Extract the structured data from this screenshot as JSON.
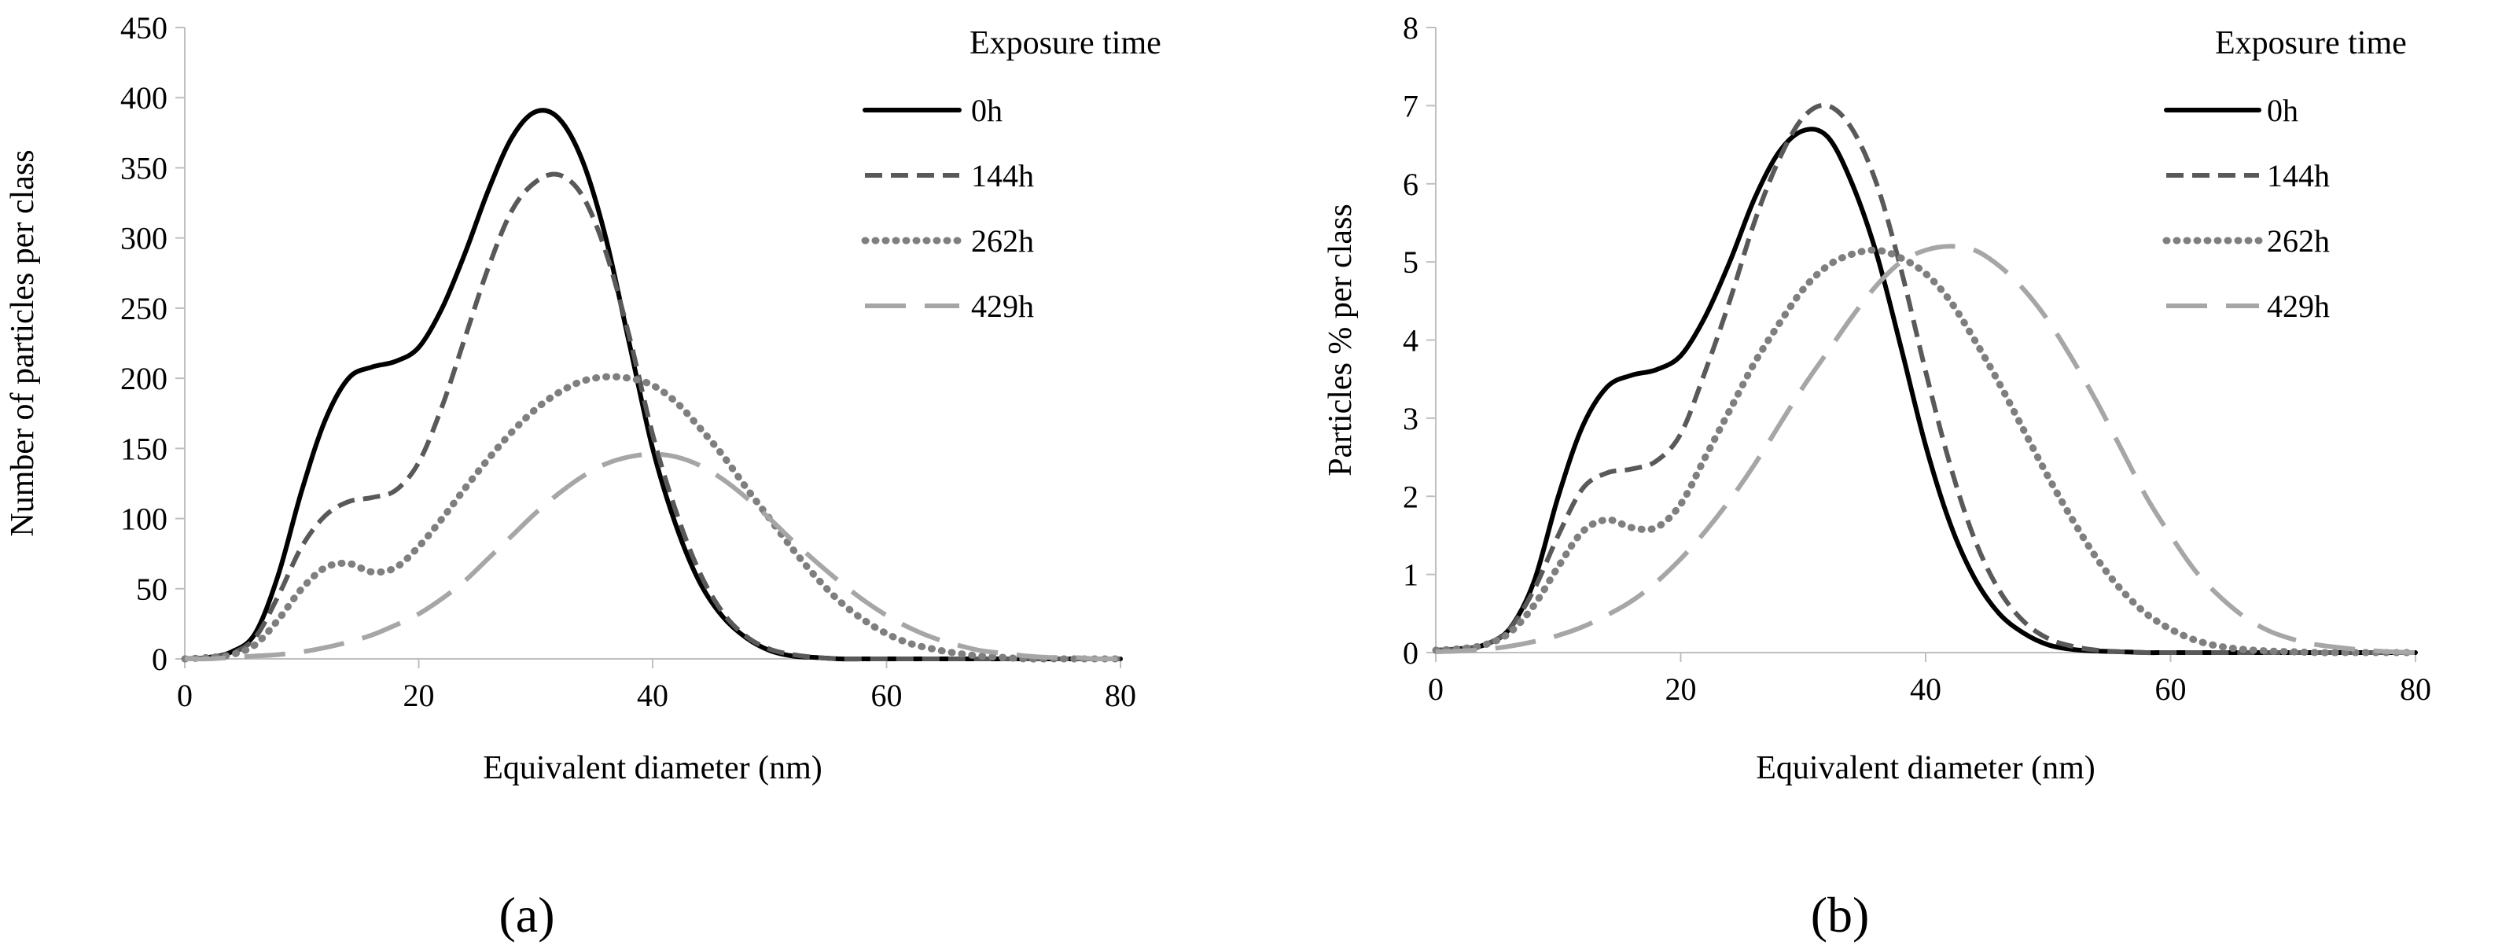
{
  "chart_data": [
    {
      "type": "line",
      "panel_label": "(a)",
      "xlabel": "Equivalent diameter (nm)",
      "ylabel": "Number of particles per class",
      "xlim": [
        0,
        80
      ],
      "ylim": [
        0,
        450
      ],
      "xticks": [
        0,
        20,
        40,
        60,
        80
      ],
      "yticks": [
        0,
        50,
        100,
        150,
        200,
        250,
        300,
        350,
        400,
        450
      ],
      "grid": false,
      "legend": {
        "title": "Exposure time",
        "position": "top-right"
      },
      "series": [
        {
          "name": "0h",
          "color": "#000000",
          "style": "solid",
          "x": [
            0,
            2,
            4,
            6,
            8,
            10,
            12,
            14,
            16,
            18,
            20,
            22,
            24,
            26,
            28,
            30,
            32,
            34,
            36,
            38,
            40,
            42,
            44,
            46,
            48,
            50,
            52,
            54,
            56,
            58,
            60,
            65,
            70,
            80
          ],
          "y": [
            0,
            1,
            5,
            18,
            60,
            120,
            170,
            200,
            208,
            212,
            222,
            250,
            290,
            335,
            372,
            390,
            385,
            355,
            300,
            225,
            150,
            95,
            55,
            30,
            15,
            6,
            2,
            1,
            0,
            0,
            0,
            0,
            0,
            0
          ]
        },
        {
          "name": "144h",
          "color": "#595959",
          "style": "short-dash",
          "x": [
            0,
            2,
            4,
            6,
            8,
            10,
            12,
            14,
            16,
            18,
            20,
            22,
            24,
            26,
            28,
            30,
            32,
            34,
            36,
            38,
            40,
            42,
            44,
            46,
            48,
            50,
            52,
            54,
            56,
            58,
            60,
            65,
            70,
            80
          ],
          "y": [
            0,
            1,
            4,
            15,
            45,
            80,
            102,
            112,
            115,
            120,
            140,
            180,
            230,
            280,
            320,
            340,
            345,
            330,
            290,
            230,
            160,
            105,
            62,
            33,
            16,
            7,
            3,
            1,
            0,
            0,
            0,
            0,
            0,
            0
          ]
        },
        {
          "name": "262h",
          "color": "#7f7f7f",
          "style": "dotted",
          "x": [
            0,
            2,
            4,
            6,
            8,
            10,
            12,
            14,
            16,
            18,
            20,
            22,
            24,
            26,
            28,
            30,
            32,
            34,
            36,
            38,
            40,
            42,
            44,
            46,
            48,
            50,
            52,
            54,
            56,
            58,
            60,
            62,
            64,
            66,
            68,
            70,
            72,
            74,
            76,
            80
          ],
          "y": [
            0,
            1,
            3,
            10,
            28,
            50,
            65,
            68,
            62,
            65,
            80,
            100,
            122,
            143,
            162,
            178,
            190,
            198,
            201,
            200,
            195,
            183,
            165,
            145,
            122,
            100,
            78,
            58,
            41,
            28,
            18,
            11,
            7,
            4,
            2,
            1,
            0,
            0,
            0,
            0
          ]
        },
        {
          "name": "429h",
          "color": "#a6a6a6",
          "style": "long-dash",
          "x": [
            0,
            2,
            4,
            6,
            8,
            10,
            12,
            14,
            16,
            18,
            20,
            22,
            24,
            26,
            28,
            30,
            32,
            34,
            36,
            38,
            40,
            42,
            44,
            46,
            48,
            50,
            52,
            54,
            56,
            58,
            60,
            62,
            64,
            66,
            68,
            70,
            72,
            74,
            76,
            78,
            80
          ],
          "y": [
            0,
            0,
            1,
            2,
            3,
            5,
            8,
            12,
            17,
            24,
            32,
            43,
            56,
            72,
            88,
            104,
            118,
            130,
            139,
            144,
            146,
            144,
            138,
            128,
            115,
            100,
            84,
            69,
            55,
            42,
            31,
            22,
            15,
            10,
            6,
            4,
            2,
            1,
            1,
            0,
            0
          ]
        }
      ]
    },
    {
      "type": "line",
      "panel_label": "(b)",
      "xlabel": "Equivalent diameter (nm)",
      "ylabel": "Particles % per class",
      "xlim": [
        0,
        80
      ],
      "ylim": [
        0,
        8
      ],
      "xticks": [
        0,
        20,
        40,
        60,
        80
      ],
      "yticks": [
        0,
        1,
        2,
        3,
        4,
        5,
        6,
        7,
        8
      ],
      "grid": false,
      "legend": {
        "title": "Exposure time",
        "position": "top-right"
      },
      "series": [
        {
          "name": "0h",
          "color": "#000000",
          "style": "solid",
          "x": [
            0,
            2,
            4,
            6,
            8,
            10,
            12,
            14,
            16,
            18,
            20,
            22,
            24,
            26,
            28,
            30,
            32,
            34,
            36,
            38,
            40,
            42,
            44,
            46,
            48,
            50,
            52,
            54,
            56,
            58,
            60,
            65,
            70,
            80
          ],
          "y": [
            0.03,
            0.05,
            0.1,
            0.3,
            0.9,
            2.0,
            2.9,
            3.4,
            3.55,
            3.62,
            3.8,
            4.3,
            5.0,
            5.8,
            6.4,
            6.68,
            6.6,
            6.0,
            5.1,
            3.9,
            2.65,
            1.65,
            0.95,
            0.5,
            0.25,
            0.1,
            0.04,
            0.02,
            0.01,
            0,
            0,
            0,
            0,
            0
          ]
        },
        {
          "name": "144h",
          "color": "#595959",
          "style": "short-dash",
          "x": [
            0,
            2,
            4,
            6,
            8,
            10,
            12,
            14,
            16,
            18,
            20,
            22,
            24,
            26,
            28,
            30,
            32,
            34,
            36,
            38,
            40,
            42,
            44,
            46,
            48,
            50,
            52,
            54,
            56,
            58,
            60,
            65,
            70,
            80
          ],
          "y": [
            0.03,
            0.05,
            0.1,
            0.3,
            0.8,
            1.5,
            2.1,
            2.3,
            2.35,
            2.45,
            2.8,
            3.6,
            4.5,
            5.5,
            6.3,
            6.85,
            7.0,
            6.7,
            6.0,
            4.9,
            3.6,
            2.4,
            1.45,
            0.8,
            0.4,
            0.18,
            0.08,
            0.03,
            0.01,
            0,
            0,
            0,
            0,
            0
          ]
        },
        {
          "name": "262h",
          "color": "#7f7f7f",
          "style": "dotted",
          "x": [
            0,
            2,
            4,
            6,
            8,
            10,
            12,
            14,
            16,
            18,
            20,
            22,
            24,
            26,
            28,
            30,
            32,
            34,
            36,
            38,
            40,
            42,
            44,
            46,
            48,
            50,
            52,
            54,
            56,
            58,
            60,
            62,
            64,
            66,
            68,
            70,
            72,
            74,
            76,
            80
          ],
          "y": [
            0.03,
            0.05,
            0.1,
            0.25,
            0.6,
            1.1,
            1.55,
            1.7,
            1.6,
            1.6,
            1.9,
            2.5,
            3.1,
            3.7,
            4.2,
            4.65,
            4.95,
            5.1,
            5.15,
            5.05,
            4.85,
            4.5,
            4.0,
            3.45,
            2.85,
            2.25,
            1.7,
            1.2,
            0.8,
            0.5,
            0.3,
            0.16,
            0.08,
            0.04,
            0.02,
            0.01,
            0,
            0,
            0,
            0
          ]
        },
        {
          "name": "429h",
          "color": "#a6a6a6",
          "style": "long-dash",
          "x": [
            0,
            2,
            4,
            6,
            8,
            10,
            12,
            14,
            16,
            18,
            20,
            22,
            24,
            26,
            28,
            30,
            32,
            34,
            36,
            38,
            40,
            42,
            44,
            46,
            48,
            50,
            52,
            54,
            56,
            58,
            60,
            62,
            64,
            66,
            68,
            70,
            72,
            74,
            76,
            78,
            80
          ],
          "y": [
            0.01,
            0.02,
            0.04,
            0.08,
            0.14,
            0.22,
            0.33,
            0.48,
            0.66,
            0.9,
            1.2,
            1.55,
            1.95,
            2.4,
            2.9,
            3.4,
            3.85,
            4.3,
            4.7,
            5.0,
            5.15,
            5.2,
            5.15,
            4.95,
            4.65,
            4.25,
            3.75,
            3.2,
            2.6,
            2.0,
            1.5,
            1.05,
            0.72,
            0.46,
            0.28,
            0.17,
            0.1,
            0.06,
            0.03,
            0.01,
            0
          ]
        }
      ]
    }
  ]
}
